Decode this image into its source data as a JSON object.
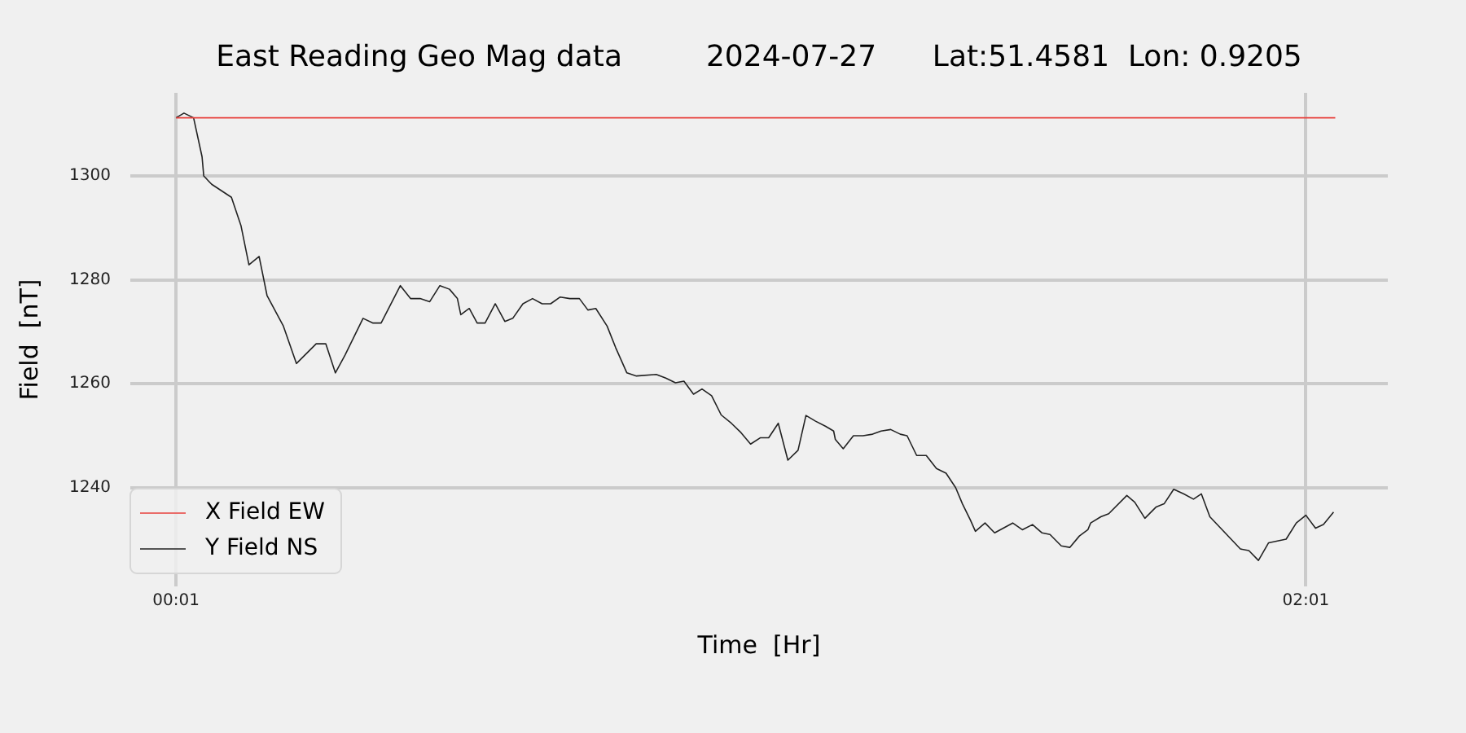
{
  "chart_data": {
    "type": "line",
    "title": "East Reading Geo Mag data         2024-07-27      Lat:51.4581  Lon: 0.9205",
    "xlabel": "Time  [Hr]",
    "ylabel": "Field  [nT]",
    "xlim": [
      -0.064,
      2.162
    ],
    "xticks": [
      {
        "value": 0.017,
        "label": "00:01"
      },
      {
        "value": 2.017,
        "label": "02:01"
      }
    ],
    "ylim": [
      1221,
      1316
    ],
    "yticks": [
      1240,
      1260,
      1280,
      1300
    ],
    "grid": true,
    "legend": "bottom left",
    "series": [
      {
        "name": "X Field EW",
        "color": "#e8413c",
        "x": [
          0.017,
          2.069
        ],
        "values": [
          1311.2,
          1311.2
        ]
      },
      {
        "name": "Y Field NS",
        "color": "#222222",
        "x": [
          0.017,
          0.031,
          0.048,
          0.063,
          0.066,
          0.08,
          0.115,
          0.132,
          0.146,
          0.164,
          0.178,
          0.207,
          0.23,
          0.265,
          0.282,
          0.299,
          0.316,
          0.348,
          0.365,
          0.38,
          0.414,
          0.432,
          0.449,
          0.466,
          0.484,
          0.501,
          0.515,
          0.521,
          0.536,
          0.55,
          0.564,
          0.582,
          0.599,
          0.613,
          0.631,
          0.648,
          0.665,
          0.68,
          0.697,
          0.714,
          0.731,
          0.746,
          0.76,
          0.78,
          0.795,
          0.815,
          0.832,
          0.867,
          0.884,
          0.901,
          0.916,
          0.933,
          0.948,
          0.965,
          0.982,
          1.0,
          1.017,
          1.034,
          1.051,
          1.066,
          1.083,
          1.1,
          1.118,
          1.132,
          1.149,
          1.167,
          1.181,
          1.184,
          1.198,
          1.216,
          1.233,
          1.25,
          1.265,
          1.282,
          1.299,
          1.311,
          1.328,
          1.345,
          1.363,
          1.38,
          1.397,
          1.409,
          1.423,
          1.432,
          1.449,
          1.466,
          1.498,
          1.515,
          1.533,
          1.55,
          1.564,
          1.584,
          1.599,
          1.616,
          1.631,
          1.636,
          1.654,
          1.668,
          1.7,
          1.714,
          1.732,
          1.752,
          1.766,
          1.783,
          1.801,
          1.818,
          1.832,
          1.847,
          1.901,
          1.916,
          1.933,
          1.951,
          1.982,
          2.0,
          2.017,
          2.034,
          2.048,
          2.066
        ],
        "values": [
          1311.2,
          1312.1,
          1311.2,
          1303.7,
          1300,
          1298.4,
          1295.9,
          1290.4,
          1282.9,
          1284.5,
          1277.0,
          1271.1,
          1263.9,
          1267.7,
          1267.7,
          1262.1,
          1265.5,
          1272.6,
          1271.7,
          1271.7,
          1278.9,
          1276.4,
          1276.4,
          1275.8,
          1278.9,
          1278.2,
          1276.4,
          1273.3,
          1274.5,
          1271.7,
          1271.7,
          1275.4,
          1272.0,
          1272.6,
          1275.4,
          1276.4,
          1275.4,
          1275.4,
          1276.7,
          1276.4,
          1276.4,
          1274.2,
          1274.5,
          1271.1,
          1267.0,
          1262.1,
          1261.5,
          1261.8,
          1261.1,
          1260.2,
          1260.5,
          1258.0,
          1259.0,
          1257.7,
          1254.0,
          1252.4,
          1250.6,
          1248.4,
          1249.6,
          1249.6,
          1252.4,
          1245.3,
          1247.2,
          1253.9,
          1252.8,
          1251.8,
          1250.9,
          1249.3,
          1247.5,
          1250.0,
          1250.0,
          1250.3,
          1250.9,
          1251.2,
          1250.3,
          1250.0,
          1246.2,
          1246.2,
          1243.7,
          1242.8,
          1240.0,
          1236.9,
          1233.8,
          1231.6,
          1233.2,
          1231.3,
          1233.2,
          1231.9,
          1232.9,
          1231.3,
          1231.0,
          1228.8,
          1228.5,
          1230.7,
          1231.9,
          1233.2,
          1234.4,
          1235.0,
          1238.5,
          1237.2,
          1234.1,
          1236.3,
          1236.9,
          1239.7,
          1238.8,
          1237.8,
          1238.8,
          1234.4,
          1228.2,
          1227.9,
          1226.0,
          1229.4,
          1230.1,
          1233.2,
          1234.7,
          1232.2,
          1232.9,
          1235.3
        ]
      }
    ]
  }
}
